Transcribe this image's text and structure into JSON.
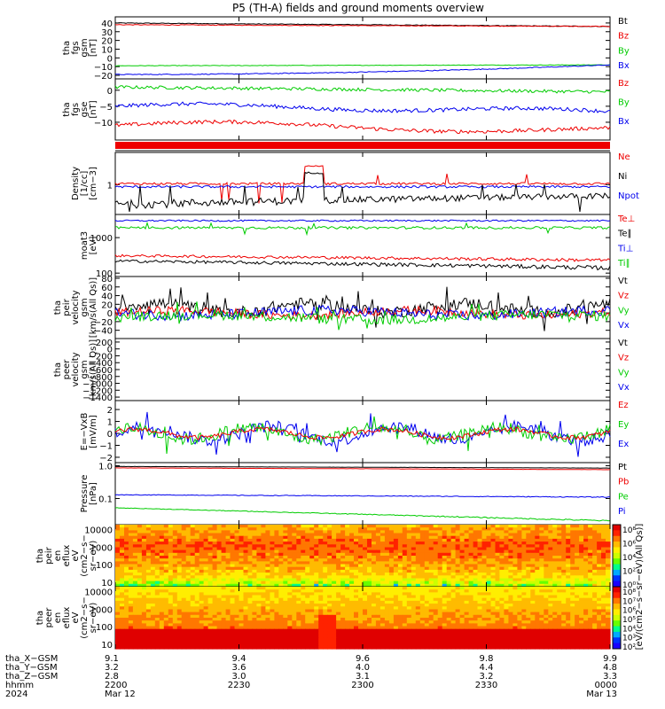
{
  "title": "P5 (TH-A) fields and ground moments overview",
  "colors": {
    "black": "#000000",
    "red": "#ee0000",
    "green": "#00cc00",
    "blue": "#0000ee",
    "frame": "#000000"
  },
  "panels": [
    {
      "id": "fgs_gsm",
      "ylabel": [
        "tha",
        "fgs",
        "gsm",
        "[nT]"
      ],
      "ylim": [
        -22,
        45
      ],
      "yticks": [
        "40",
        "30",
        "20",
        "10",
        "0",
        "−10",
        "−20"
      ],
      "legend": [
        {
          "text": "Bt",
          "color": "black"
        },
        {
          "text": "Bz",
          "color": "red"
        },
        {
          "text": "By",
          "color": "green"
        },
        {
          "text": "Bx",
          "color": "blue"
        }
      ]
    },
    {
      "id": "fgs_gse",
      "ylabel": [
        "tha",
        "fgs",
        "gse",
        "[nT]"
      ],
      "ylim": [
        -15,
        3
      ],
      "yticks": [
        "0",
        "−5",
        "−10"
      ],
      "legend": [
        {
          "text": "Bz",
          "color": "red"
        },
        {
          "text": "By",
          "color": "green"
        },
        {
          "text": "Bx",
          "color": "blue"
        }
      ]
    },
    {
      "id": "density",
      "ylabel": [
        "Density",
        "[1/cc]",
        "[cm−3]"
      ],
      "ylim": [
        0.25,
        4.5
      ],
      "yticks": [
        "1"
      ],
      "legend": [
        {
          "text": "Ne",
          "color": "red"
        },
        {
          "text": "Ni",
          "color": "black"
        },
        {
          "text": "Npot",
          "color": "blue"
        }
      ]
    },
    {
      "id": "temp",
      "ylabel": [
        "moat3",
        "[eV]"
      ],
      "ylim": [
        90,
        4000
      ],
      "yticks": [
        "1000",
        "100"
      ],
      "legend": [
        {
          "text": "Te⊥",
          "color": "red"
        },
        {
          "text": "Te∥",
          "color": "black"
        },
        {
          "text": "Ti⊥",
          "color": "blue"
        },
        {
          "text": "Ti∥",
          "color": "green"
        }
      ]
    },
    {
      "id": "peir_vel",
      "ylabel": [
        "tha",
        "peir",
        "velocity",
        "gsm",
        "[km/s(All Qs)]"
      ],
      "ylim": [
        -55,
        80
      ],
      "yticks": [
        "80",
        "60",
        "40",
        "20",
        "0",
        "−20",
        "−40"
      ],
      "legend": [
        {
          "text": "Vt",
          "color": "black"
        },
        {
          "text": "Vz",
          "color": "red"
        },
        {
          "text": "Vy",
          "color": "green"
        },
        {
          "text": "Vx",
          "color": "blue"
        }
      ]
    },
    {
      "id": "peer_vel",
      "ylabel": [
        "tha",
        "peer",
        "velocity",
        "gsm",
        "[km/s(All Qs)]"
      ],
      "ylim": [
        -1450,
        250
      ],
      "yticks": [
        "200",
        "0",
        "−200",
        "−400",
        "−600",
        "−800",
        "−1000",
        "−1200",
        "−1400"
      ],
      "legend": [
        {
          "text": "Vt",
          "color": "black"
        },
        {
          "text": "Vz",
          "color": "red"
        },
        {
          "text": "Vy",
          "color": "green"
        },
        {
          "text": "Vx",
          "color": "blue"
        }
      ]
    },
    {
      "id": "efield",
      "ylabel": [
        "E=−VxB",
        "[mV/m]"
      ],
      "ylim": [
        -2.3,
        2.6
      ],
      "yticks": [
        "2",
        "1",
        "0",
        "−1",
        "−2"
      ],
      "legend": [
        {
          "text": "Ez",
          "color": "red"
        },
        {
          "text": "Ey",
          "color": "green"
        },
        {
          "text": "Ex",
          "color": "blue"
        }
      ]
    },
    {
      "id": "pressure",
      "ylabel": [
        "Pressure",
        "[nPa]"
      ],
      "ylim": [
        0.018,
        1.1
      ],
      "yticks": [
        "1.0",
        "0.1"
      ],
      "legend": [
        {
          "text": "Pt",
          "color": "black"
        },
        {
          "text": "Pb",
          "color": "red"
        },
        {
          "text": "Pe",
          "color": "green"
        },
        {
          "text": "Pi",
          "color": "blue"
        }
      ]
    },
    {
      "id": "peir_spec",
      "ylabel": [
        "tha",
        "peir",
        "en",
        "eflux",
        "eV",
        "(cm2−s−",
        "sr−eV)"
      ],
      "ylim": [
        7,
        15000
      ],
      "yticks": [
        "10000",
        "1000",
        "100",
        "10"
      ],
      "legend": []
    },
    {
      "id": "peer_spec",
      "ylabel": [
        "tha",
        "peer",
        "en",
        "eflux",
        "eV",
        "(cm2−s−",
        "sr−eV)"
      ],
      "ylim": [
        7,
        15000
      ],
      "yticks": [
        "10000",
        "1000",
        "100",
        "10"
      ],
      "legend": []
    }
  ],
  "colorbar": {
    "label": "[eV/(cm2−s−sr−eV)(All Qs)]",
    "top": {
      "ticks": [
        "10⁸",
        "10⁶",
        "10⁴",
        "10²",
        "10⁰"
      ]
    },
    "bottom": {
      "ticks": [
        "10⁸",
        "10⁷",
        "10⁶",
        "10⁵",
        "10⁴",
        "10³",
        "10²"
      ]
    }
  },
  "xaxis": {
    "rows": [
      {
        "label": "tha_X−GSM",
        "values": [
          "9.1",
          "9.4",
          "9.6",
          "9.8",
          "9.9"
        ]
      },
      {
        "label": "tha_Y−GSM",
        "values": [
          "3.2",
          "3.6",
          "4.0",
          "4.4",
          "4.8"
        ]
      },
      {
        "label": "tha_Z−GSM",
        "values": [
          "2.8",
          "3.0",
          "3.1",
          "3.2",
          "3.3"
        ]
      },
      {
        "label": "hhmm",
        "values": [
          "2200",
          "2230",
          "2300",
          "2330",
          "0000"
        ]
      },
      {
        "label": "2024",
        "values": [
          "Mar 12",
          "",
          "",
          "",
          "Mar 13"
        ]
      }
    ]
  },
  "chart_data": {
    "type": "line",
    "x": [
      "2200",
      "2230",
      "2300",
      "2330",
      "0000"
    ],
    "series": [
      {
        "name": "Bt",
        "values": [
          40,
          39,
          39,
          37,
          36
        ]
      },
      {
        "name": "Bz",
        "values": [
          38,
          38,
          37,
          36,
          36
        ]
      },
      {
        "name": "By",
        "values": [
          -9,
          -9,
          -9,
          -8,
          -8
        ]
      },
      {
        "name": "Bx",
        "values": [
          -19,
          -17,
          -15,
          -13,
          -8
        ]
      }
    ]
  }
}
